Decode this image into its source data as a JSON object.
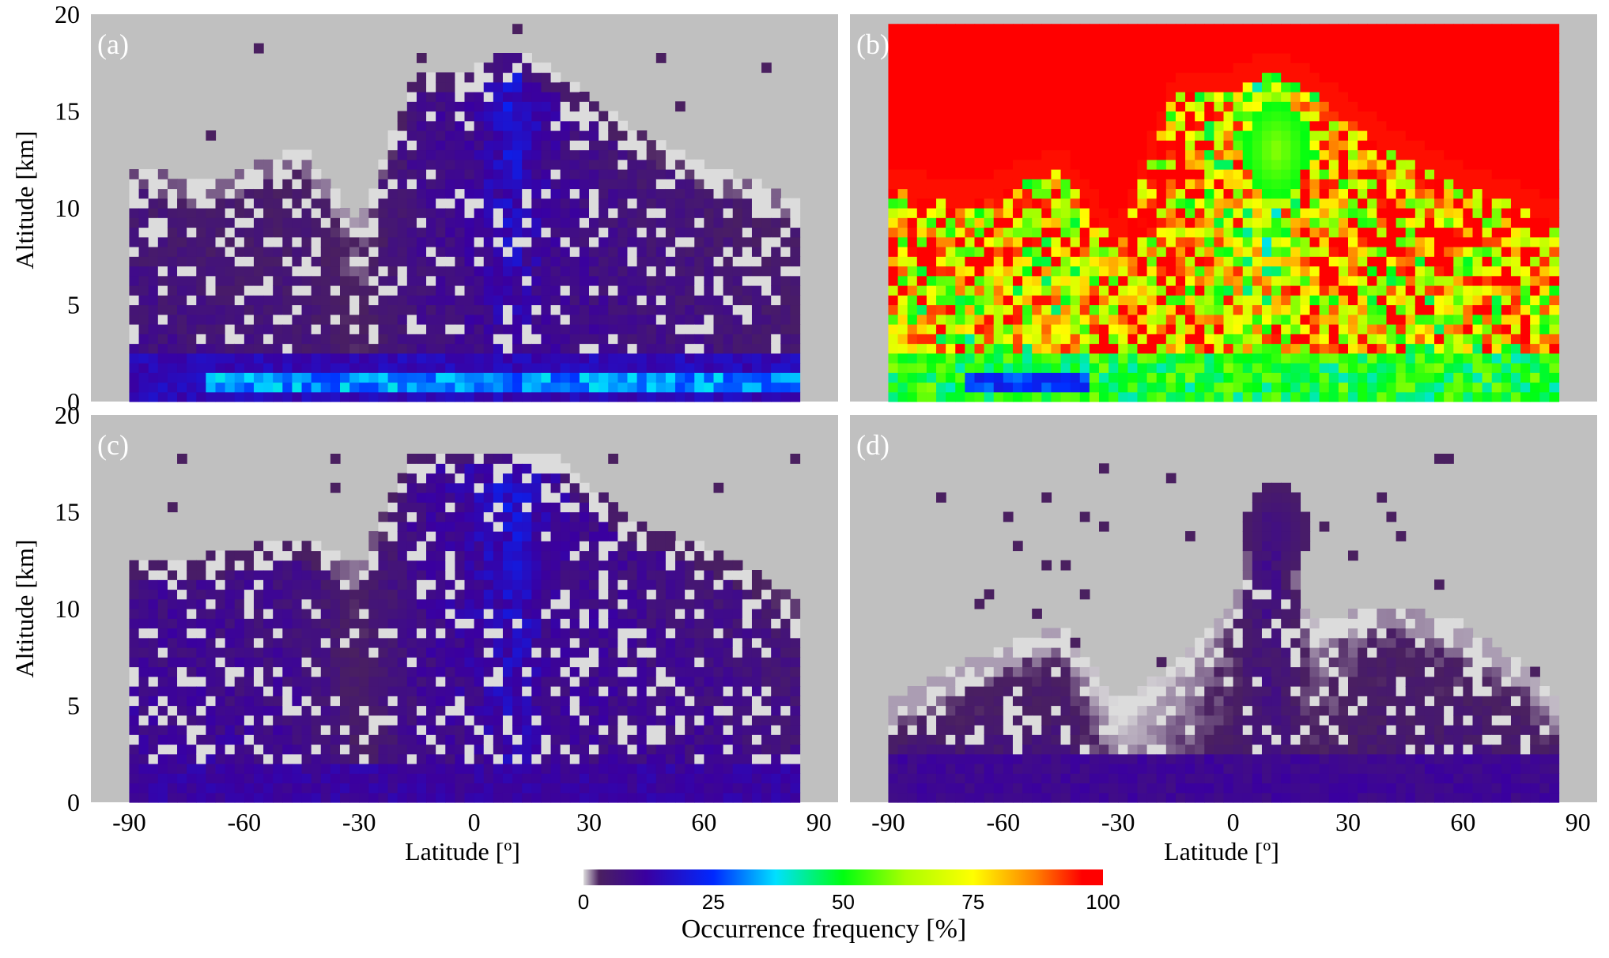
{
  "colors": {
    "background": "#ffffff",
    "no_data": "#c0c0c0",
    "text": "#000000",
    "panel_label": "#ffffff"
  },
  "colorbar": {
    "label": "Occurrence frequency [%]",
    "ticks": [
      "0",
      "25",
      "50",
      "75",
      "100"
    ],
    "range": [
      0,
      100
    ],
    "stops": [
      {
        "pos": 0.0,
        "color": "#dcdcdc"
      },
      {
        "pos": 0.03,
        "color": "#4a2060"
      },
      {
        "pos": 0.12,
        "color": "#3a00a0"
      },
      {
        "pos": 0.25,
        "color": "#0028ff"
      },
      {
        "pos": 0.37,
        "color": "#00e0ff"
      },
      {
        "pos": 0.5,
        "color": "#00ff10"
      },
      {
        "pos": 0.62,
        "color": "#aaff00"
      },
      {
        "pos": 0.75,
        "color": "#ffff00"
      },
      {
        "pos": 0.87,
        "color": "#ff8000"
      },
      {
        "pos": 0.96,
        "color": "#ff0000"
      },
      {
        "pos": 1.0,
        "color": "#ff0000"
      }
    ]
  },
  "chart_data": [
    {
      "type": "heatmap",
      "panel_label": "(a)",
      "xlabel": "",
      "ylabel": "Altitude [km]",
      "xlim": [
        -100,
        95
      ],
      "ylim": [
        0,
        20
      ],
      "xticks": [],
      "yticks": [
        "0",
        "5",
        "10",
        "15",
        "20"
      ],
      "data_extent": {
        "lat": [
          -90,
          85
        ],
        "alt": [
          0,
          19.5
        ]
      },
      "value_range": [
        0,
        100
      ],
      "description_fields": {
        "surface_layer": {
          "top_km": 2.5,
          "value_pct": 15
        },
        "near_surface_max": {
          "lat": [
            -70,
            85
          ],
          "alt": [
            0.3,
            1.3
          ],
          "value_pct": 32
        },
        "tropical_core": {
          "lat": 10,
          "alt": 14,
          "value_pct": 18
        }
      },
      "profile": {
        "lats": [
          -90,
          -70,
          -45,
          -30,
          -15,
          0,
          10,
          20,
          40,
          60,
          75,
          85
        ],
        "cloud_top_km": [
          11,
          10,
          12,
          8,
          16,
          16,
          17,
          16,
          13,
          11,
          10,
          9
        ],
        "mid_value_pct": [
          8,
          7,
          6,
          3,
          7,
          9,
          12,
          9,
          8,
          7,
          6,
          5
        ],
        "high_value_pct": [
          5,
          4,
          4,
          2,
          8,
          10,
          18,
          10,
          6,
          5,
          4,
          4
        ]
      }
    },
    {
      "type": "heatmap",
      "panel_label": "(b)",
      "xlabel": "",
      "ylabel": "",
      "xlim": [
        -100,
        95
      ],
      "ylim": [
        0,
        20
      ],
      "xticks": [],
      "yticks": [],
      "data_extent": {
        "lat": [
          -90,
          85
        ],
        "alt": [
          0,
          19.5
        ]
      },
      "value_range": [
        0,
        100
      ],
      "description_fields": {
        "surface_layer": {
          "top_km": 2.5,
          "value_pct": 50
        },
        "near_surface_min": {
          "lat": [
            -70,
            -40
          ],
          "alt": [
            0.3,
            1.3
          ],
          "value_pct": 25
        },
        "tropical_core": {
          "lat": 10,
          "alt": 13,
          "value_pct": 50
        }
      },
      "profile": {
        "lats": [
          -90,
          -70,
          -45,
          -30,
          -15,
          0,
          10,
          20,
          40,
          60,
          75,
          85
        ],
        "cloud_top_km": [
          11,
          10,
          12,
          8,
          16,
          16,
          17,
          16,
          13,
          11,
          10,
          9
        ],
        "mid_value_pct": [
          72,
          68,
          65,
          85,
          90,
          75,
          70,
          85,
          75,
          70,
          72,
          78
        ],
        "high_value_pct": [
          88,
          85,
          80,
          92,
          82,
          70,
          50,
          78,
          85,
          85,
          88,
          90
        ]
      }
    },
    {
      "type": "heatmap",
      "panel_label": "(c)",
      "xlabel": "Latitude [º]",
      "ylabel": "Altitude [km]",
      "xlim": [
        -100,
        95
      ],
      "ylim": [
        0,
        20
      ],
      "xticks": [
        "-90",
        "-60",
        "-30",
        "0",
        "30",
        "60",
        "90"
      ],
      "yticks": [
        "0",
        "5",
        "10",
        "15",
        "20"
      ],
      "data_extent": {
        "lat": [
          -90,
          85
        ],
        "alt": [
          0,
          18
        ]
      },
      "value_range": [
        0,
        100
      ],
      "description_fields": {
        "surface_layer": {
          "top_km": 2.2,
          "value_pct": 12
        },
        "tropical_core": {
          "lat": 10,
          "alt": 12,
          "value_pct": 20
        }
      },
      "profile": {
        "lats": [
          -90,
          -70,
          -45,
          -30,
          -15,
          0,
          10,
          20,
          40,
          60,
          75,
          85
        ],
        "cloud_top_km": [
          11.5,
          11.5,
          12.5,
          11,
          17.5,
          17.5,
          17.5,
          17,
          13.5,
          12,
          10.5,
          9
        ],
        "mid_value_pct": [
          10,
          10,
          9,
          4,
          8,
          10,
          13,
          9,
          9,
          9,
          8,
          7
        ],
        "high_value_pct": [
          8,
          8,
          7,
          3,
          9,
          12,
          18,
          11,
          8,
          7,
          6,
          5
        ]
      }
    },
    {
      "type": "heatmap",
      "panel_label": "(d)",
      "xlabel": "Latitude [º]",
      "ylabel": "",
      "xlim": [
        -100,
        95
      ],
      "ylim": [
        0,
        20
      ],
      "xticks": [
        "-90",
        "-60",
        "-30",
        "0",
        "30",
        "60",
        "90"
      ],
      "yticks": [],
      "data_extent": {
        "lat": [
          -90,
          85
        ],
        "alt": [
          0,
          18
        ]
      },
      "value_range": [
        0,
        100
      ],
      "description_fields": {
        "surface_layer": {
          "top_km": 2.4,
          "value_pct": 10
        },
        "tropical_core": {
          "lat": 10,
          "alt": 14,
          "value_pct": 8
        }
      },
      "profile": {
        "lats": [
          -90,
          -70,
          -45,
          -30,
          -15,
          0,
          10,
          20,
          40,
          60,
          75,
          85
        ],
        "cloud_top_km": [
          4,
          6,
          8,
          4,
          6,
          9,
          16,
          8,
          9,
          8,
          6,
          4
        ],
        "mid_value_pct": [
          6,
          6,
          6,
          1,
          2,
          4,
          6,
          3,
          5,
          6,
          5,
          4
        ],
        "high_value_pct": [
          2,
          2,
          2,
          0,
          1,
          2,
          8,
          1,
          3,
          2,
          2,
          1
        ]
      }
    }
  ]
}
